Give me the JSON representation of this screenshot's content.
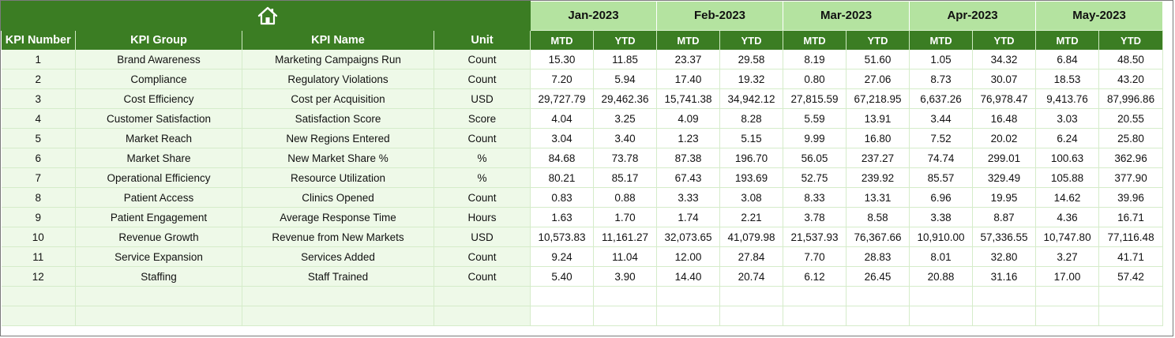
{
  "header": {
    "columns": {
      "kpi_number": "KPI Number",
      "kpi_group": "KPI Group",
      "kpi_name": "KPI Name",
      "unit": "Unit"
    },
    "months": [
      "Jan-2023",
      "Feb-2023",
      "Mar-2023",
      "Apr-2023",
      "May-2023"
    ],
    "mtd_label": "MTD",
    "ytd_label": "YTD"
  },
  "colors": {
    "header_green": "#3b7d23",
    "month_green": "#b4e3a0",
    "label_bg": "#eef9e8"
  },
  "icons": {
    "home": "home-icon"
  },
  "rows": [
    {
      "num": "1",
      "group": "Brand Awareness",
      "name": "Marketing Campaigns Run",
      "unit": "Count",
      "vals": [
        "15.30",
        "11.85",
        "23.37",
        "29.58",
        "8.19",
        "51.60",
        "1.05",
        "34.32",
        "6.84",
        "48.50"
      ]
    },
    {
      "num": "2",
      "group": "Compliance",
      "name": "Regulatory Violations",
      "unit": "Count",
      "vals": [
        "7.20",
        "5.94",
        "17.40",
        "19.32",
        "0.80",
        "27.06",
        "8.73",
        "30.07",
        "18.53",
        "43.20"
      ]
    },
    {
      "num": "3",
      "group": "Cost Efficiency",
      "name": "Cost per Acquisition",
      "unit": "USD",
      "vals": [
        "29,727.79",
        "29,462.36",
        "15,741.38",
        "34,942.12",
        "27,815.59",
        "67,218.95",
        "6,637.26",
        "76,978.47",
        "9,413.76",
        "87,996.86"
      ]
    },
    {
      "num": "4",
      "group": "Customer Satisfaction",
      "name": "Satisfaction Score",
      "unit": "Score",
      "vals": [
        "4.04",
        "3.25",
        "4.09",
        "8.28",
        "5.59",
        "13.91",
        "3.44",
        "16.48",
        "3.03",
        "20.55"
      ]
    },
    {
      "num": "5",
      "group": "Market Reach",
      "name": "New Regions Entered",
      "unit": "Count",
      "vals": [
        "3.04",
        "3.40",
        "1.23",
        "5.15",
        "9.99",
        "16.80",
        "7.52",
        "20.02",
        "6.24",
        "25.80"
      ]
    },
    {
      "num": "6",
      "group": "Market Share",
      "name": "New Market Share %",
      "unit": "%",
      "vals": [
        "84.68",
        "73.78",
        "87.38",
        "196.70",
        "56.05",
        "237.27",
        "74.74",
        "299.01",
        "100.63",
        "362.96"
      ]
    },
    {
      "num": "7",
      "group": "Operational Efficiency",
      "name": "Resource Utilization",
      "unit": "%",
      "vals": [
        "80.21",
        "85.17",
        "67.43",
        "193.69",
        "52.75",
        "239.92",
        "85.57",
        "329.49",
        "105.88",
        "377.90"
      ]
    },
    {
      "num": "8",
      "group": "Patient Access",
      "name": "Clinics Opened",
      "unit": "Count",
      "vals": [
        "0.83",
        "0.88",
        "3.33",
        "3.08",
        "8.33",
        "13.31",
        "6.96",
        "19.95",
        "14.62",
        "39.96"
      ]
    },
    {
      "num": "9",
      "group": "Patient Engagement",
      "name": "Average Response Time",
      "unit": "Hours",
      "vals": [
        "1.63",
        "1.70",
        "1.74",
        "2.21",
        "3.78",
        "8.58",
        "3.38",
        "8.87",
        "4.36",
        "16.71"
      ]
    },
    {
      "num": "10",
      "group": "Revenue Growth",
      "name": "Revenue from New Markets",
      "unit": "USD",
      "vals": [
        "10,573.83",
        "11,161.27",
        "32,073.65",
        "41,079.98",
        "21,537.93",
        "76,367.66",
        "10,910.00",
        "57,336.55",
        "10,747.80",
        "77,116.48"
      ]
    },
    {
      "num": "11",
      "group": "Service Expansion",
      "name": "Services Added",
      "unit": "Count",
      "vals": [
        "9.24",
        "11.04",
        "12.00",
        "27.84",
        "7.70",
        "28.83",
        "8.01",
        "32.80",
        "3.27",
        "41.71"
      ]
    },
    {
      "num": "12",
      "group": "Staffing",
      "name": "Staff Trained",
      "unit": "Count",
      "vals": [
        "5.40",
        "3.90",
        "14.40",
        "20.74",
        "6.12",
        "26.45",
        "20.88",
        "31.16",
        "17.00",
        "57.42"
      ]
    }
  ]
}
